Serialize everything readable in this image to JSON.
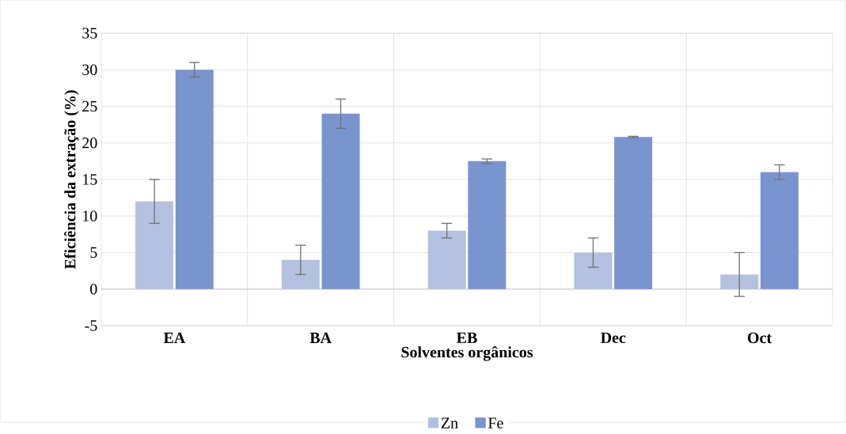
{
  "chart_data": {
    "type": "bar",
    "xlabel": "Solventes orgânicos",
    "ylabel": "Eficiência da extração (%)",
    "categories": [
      "EA",
      "BA",
      "EB",
      "Dec",
      "Oct"
    ],
    "series": [
      {
        "name": "Zn",
        "color": "#b4c0e0",
        "values": [
          12,
          4,
          8,
          5,
          2
        ],
        "errors": [
          3,
          2,
          1,
          2,
          3
        ]
      },
      {
        "name": "Fe",
        "color": "#7a94d0",
        "values": [
          30,
          24,
          17.5,
          20.8,
          16
        ],
        "errors": [
          1,
          2,
          0.3,
          0.1,
          1
        ]
      }
    ],
    "ylim": [
      -5,
      35
    ],
    "yticks": [
      -5,
      0,
      5,
      10,
      15,
      20,
      25,
      30,
      35
    ],
    "grid": true,
    "legend": "bottom"
  }
}
